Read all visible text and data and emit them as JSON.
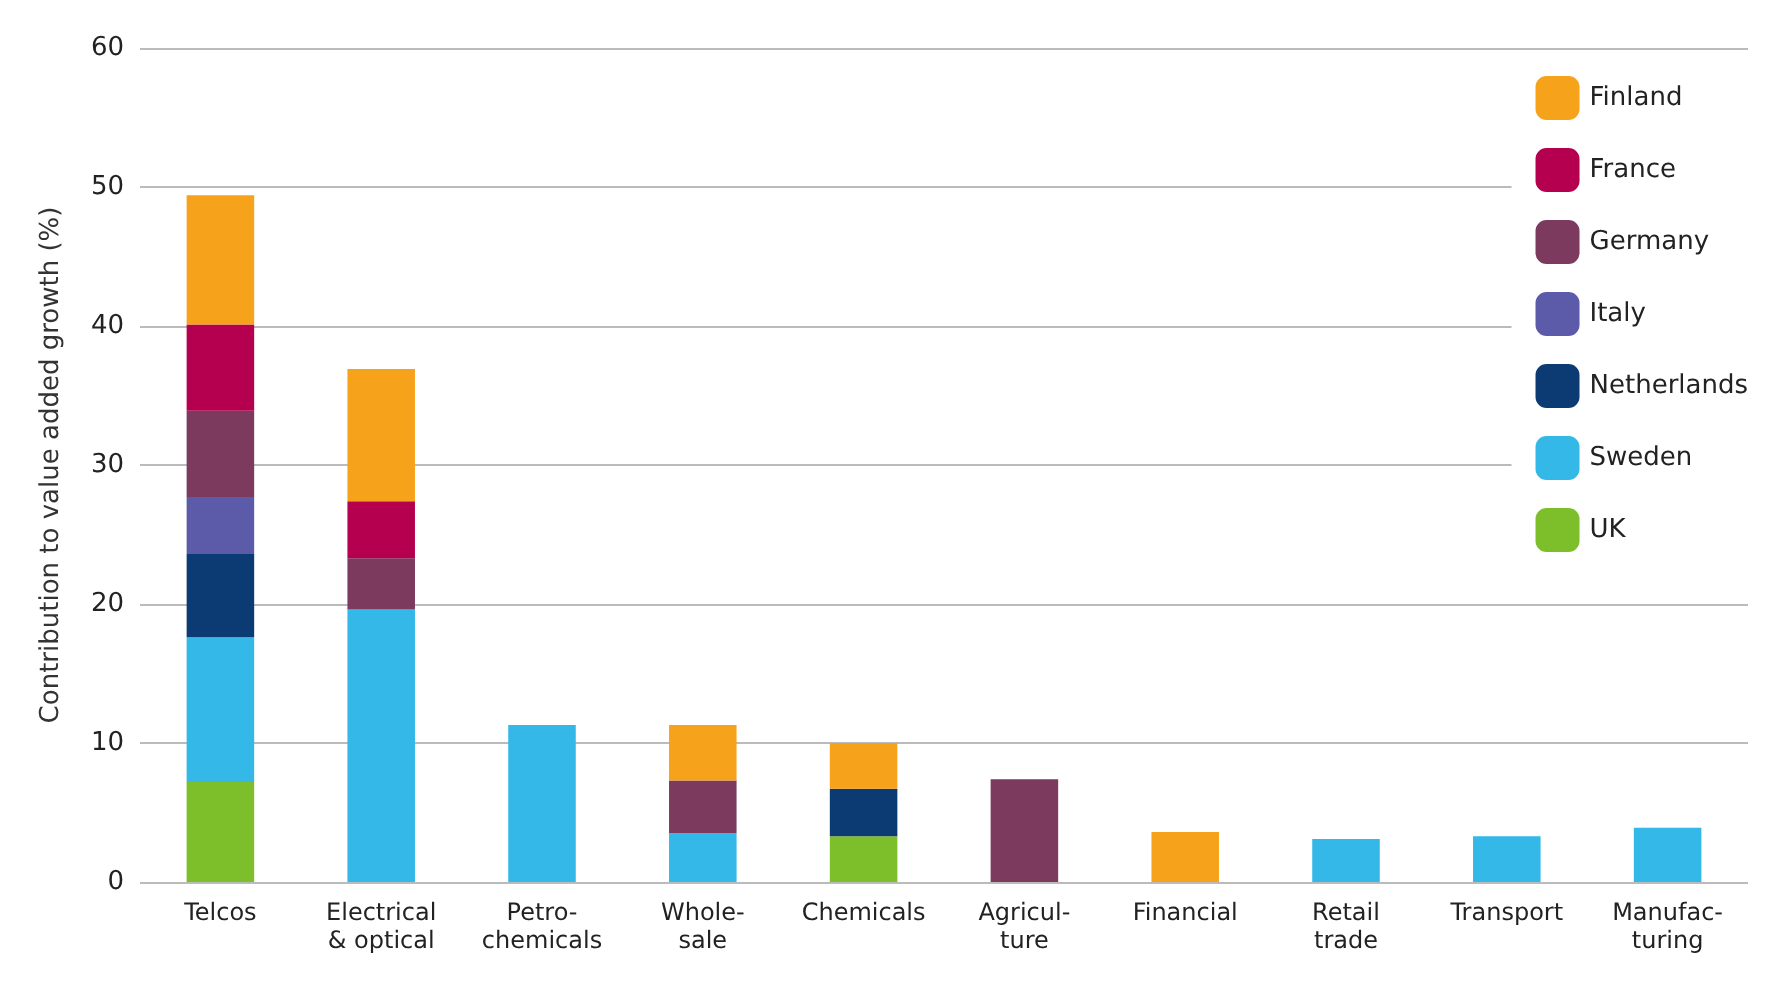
{
  "chart_data": {
    "type": "bar",
    "stacked": true,
    "ylabel": "Contribution to value added growth (%)",
    "categories": [
      "Telcos",
      "Electrical\n& optical",
      "Petro-\nchemicals",
      "Whole-\nsale",
      "Chemicals",
      "Agricul-\nture",
      "Financial",
      "Retail\ntrade",
      "Transport",
      "Manufac-\nturing"
    ],
    "series": [
      {
        "name": "UK",
        "color": "#7dbf2b",
        "values": [
          7.2,
          null,
          null,
          null,
          3.3,
          null,
          null,
          null,
          null,
          null
        ]
      },
      {
        "name": "Sweden",
        "color": "#33b8e8",
        "values": [
          10.4,
          19.6,
          11.3,
          3.5,
          null,
          null,
          null,
          3.1,
          3.3,
          3.9
        ]
      },
      {
        "name": "Netherlands",
        "color": "#0b3b72",
        "values": [
          6,
          null,
          null,
          null,
          3.4,
          null,
          null,
          null,
          null,
          null
        ]
      },
      {
        "name": "Italy",
        "color": "#5b5baa",
        "values": [
          4.1,
          null,
          null,
          null,
          null,
          null,
          null,
          null,
          null,
          null
        ]
      },
      {
        "name": "Germany",
        "color": "#7b3a5e",
        "values": [
          6.2,
          3.7,
          null,
          3.8,
          null,
          7.4,
          null,
          null,
          null,
          null
        ]
      },
      {
        "name": "France",
        "color": "#b5004f",
        "values": [
          6.2,
          4.1,
          null,
          null,
          null,
          null,
          null,
          null,
          null,
          null
        ]
      },
      {
        "name": "Finland",
        "color": "#f7a21b",
        "values": [
          9.3,
          9.5,
          null,
          4,
          3.3,
          null,
          3.6,
          null,
          null,
          null
        ]
      }
    ],
    "ylim": [
      0,
      60
    ],
    "yticks": [
      0,
      10,
      20,
      30,
      40,
      50,
      60
    ],
    "grid": "y",
    "legend": "top right"
  }
}
